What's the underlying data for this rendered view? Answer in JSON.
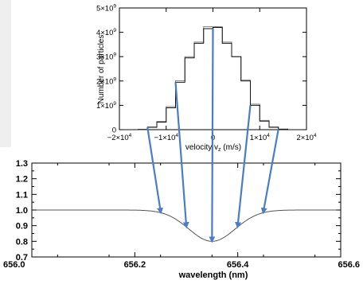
{
  "chart_data": [
    {
      "type": "histogram",
      "xlabel": "velocity v",
      "xlabel_sub": "z",
      "xlabel_unit": " (m/s)",
      "ylabel": "Number of particles",
      "xlim": [
        -20000,
        20000
      ],
      "ylim": [
        0,
        5000000000
      ],
      "x_ticks": [
        {
          "value": -20000,
          "base": "−2×10",
          "exp": "4"
        },
        {
          "value": -10000,
          "base": "−1×10",
          "exp": "4"
        },
        {
          "value": 0,
          "base": "0",
          "exp": ""
        },
        {
          "value": 10000,
          "base": "1×10",
          "exp": "4"
        },
        {
          "value": 20000,
          "base": "2×10",
          "exp": "4"
        }
      ],
      "y_ticks": [
        {
          "value": 0,
          "base": "0",
          "exp": ""
        },
        {
          "value": 1000000000,
          "base": "1×10",
          "exp": "9"
        },
        {
          "value": 2000000000,
          "base": "2×10",
          "exp": "9"
        },
        {
          "value": 3000000000,
          "base": "3×10",
          "exp": "9"
        },
        {
          "value": 4000000000,
          "base": "4×10",
          "exp": "9"
        },
        {
          "value": 5000000000,
          "base": "5×10",
          "exp": "9"
        }
      ],
      "bin_edges": [
        -20000,
        -18000,
        -16000,
        -14000,
        -12000,
        -10000,
        -8000,
        -6000,
        -4000,
        -2000,
        0,
        2000,
        4000,
        6000,
        8000,
        10000,
        12000,
        14000,
        16000,
        18000,
        20000
      ],
      "counts": [
        0,
        0,
        10000000,
        100000000,
        310000000,
        900000000,
        1950000000,
        2950000000,
        3550000000,
        4150000000,
        4200000000,
        3550000000,
        3000000000,
        2000000000,
        1000000000,
        350000000,
        100000000,
        20000000,
        0,
        0
      ],
      "second_step_counts": [
        0,
        0,
        10000000,
        110000000,
        340000000,
        950000000,
        2010000000,
        3000000000,
        3600000000,
        4230000000,
        4230000000,
        3600000000,
        3000000000,
        2040000000,
        1050000000,
        380000000,
        110000000,
        20000000,
        0,
        0
      ],
      "arrow_velocities": [
        -14000,
        -8000,
        0,
        8000,
        14000
      ]
    },
    {
      "type": "line",
      "xlabel": "wavelength (nm)",
      "ylabel": "",
      "xlim": [
        656.0,
        656.6
      ],
      "ylim": [
        0.7,
        1.3
      ],
      "x_ticks": [
        "656.0",
        "656.2",
        "656.4",
        "656.6"
      ],
      "x_tick_values": [
        656.0,
        656.2,
        656.4,
        656.6
      ],
      "y_ticks": [
        "0.7",
        "0.8",
        "0.9",
        "1.0",
        "1.1",
        "1.2",
        "1.3"
      ],
      "y_tick_values": [
        0.7,
        0.8,
        0.9,
        1.0,
        1.1,
        1.2,
        1.3
      ],
      "line_center": 656.35,
      "line_depth": 0.2,
      "line_width_sigma": 0.045,
      "continuum": 1.0,
      "arrow_wavelengths": [
        656.25,
        656.3,
        656.35,
        656.4,
        656.45
      ]
    }
  ],
  "colors": {
    "arrow": "#4b7cc7",
    "axis": "#000000",
    "curve": "#555555"
  }
}
